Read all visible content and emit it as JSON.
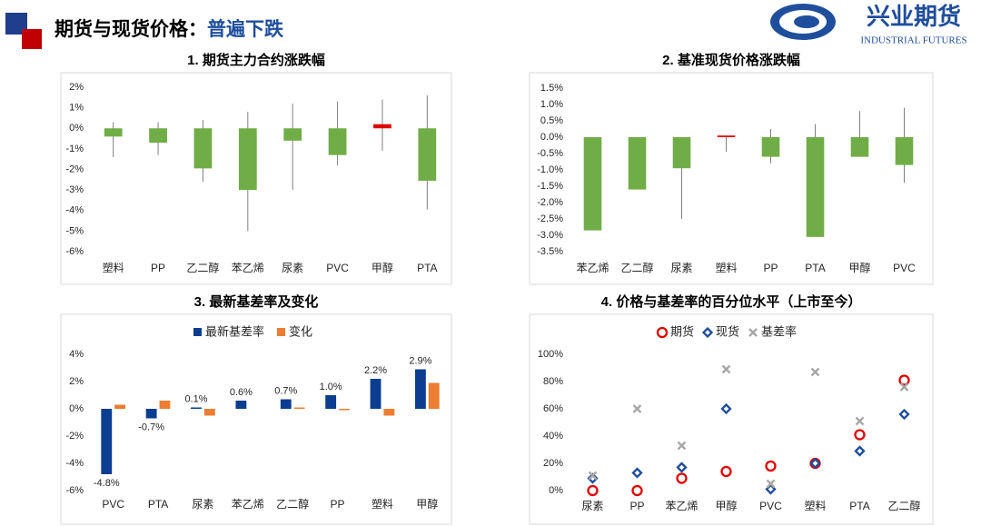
{
  "header": {
    "title": "期货与现货价格：",
    "highlight": "普遍下跌"
  },
  "logo": {
    "name": "兴业期货",
    "subtitle": "INDUSTRIAL FUTURES"
  },
  "chart_data": [
    {
      "type": "range_bar",
      "title": "1. 期货主力合约涨跌幅",
      "categories": [
        "塑料",
        "PP",
        "乙二醇",
        "苯乙烯",
        "尿素",
        "PVC",
        "甲醇",
        "PTA"
      ],
      "values": [
        -0.4,
        -0.7,
        -1.95,
        -3.0,
        -0.6,
        -1.3,
        0.2,
        -2.55
      ],
      "high": [
        0.3,
        0.3,
        0.4,
        0.8,
        1.2,
        1.3,
        1.4,
        1.6
      ],
      "low": [
        -1.4,
        -1.3,
        -2.6,
        -5.0,
        -3.0,
        -1.8,
        -1.1,
        -3.95
      ],
      "up_color": "#e00000",
      "down_color": "#70ad47",
      "grid": false,
      "ylim": [
        -6,
        2
      ],
      "yticks": [
        {
          "value": -6,
          "label": "-6%"
        },
        {
          "value": -5,
          "label": "-5%"
        },
        {
          "value": -4,
          "label": "-4%"
        },
        {
          "value": -3,
          "label": "-3%"
        },
        {
          "value": -2,
          "label": "-2%"
        },
        {
          "value": -1,
          "label": "-1%"
        },
        {
          "value": 0,
          "label": "0%"
        },
        {
          "value": 1,
          "label": "1%"
        },
        {
          "value": 2,
          "label": "2%"
        }
      ]
    },
    {
      "type": "range_bar",
      "title": "2. 基准现货价格涨跌幅",
      "categories": [
        "苯乙烯",
        "乙二醇",
        "尿素",
        "塑料",
        "PP",
        "PTA",
        "甲醇",
        "PVC"
      ],
      "values": [
        -2.85,
        -1.6,
        -0.95,
        0.05,
        -0.6,
        -3.05,
        -0.6,
        -0.85
      ],
      "high": [
        null,
        null,
        null,
        null,
        0.25,
        0.4,
        0.8,
        0.9
      ],
      "low": [
        null,
        null,
        -2.5,
        -0.45,
        -0.8,
        null,
        null,
        -1.4
      ],
      "up_color": "#e00000",
      "down_color": "#70ad47",
      "grid": false,
      "ylim": [
        -3.5,
        1.5
      ],
      "yticks": [
        {
          "value": -3.5,
          "label": "-3.5%"
        },
        {
          "value": -3,
          "label": "-3.0%"
        },
        {
          "value": -2.5,
          "label": "-2.5%"
        },
        {
          "value": -2,
          "label": "-2.0%"
        },
        {
          "value": -1.5,
          "label": "-1.5%"
        },
        {
          "value": -1,
          "label": "-1.0%"
        },
        {
          "value": -0.5,
          "label": "-0.5%"
        },
        {
          "value": 0,
          "label": "0.0%"
        },
        {
          "value": 0.5,
          "label": "0.5%"
        },
        {
          "value": 1,
          "label": "1.0%"
        },
        {
          "value": 1.5,
          "label": "1.5%"
        }
      ]
    },
    {
      "type": "bar",
      "title": "3. 最新基差率及变化",
      "categories": [
        "PVC",
        "PTA",
        "尿素",
        "苯乙烯",
        "乙二醇",
        "PP",
        "塑料",
        "甲醇"
      ],
      "series": [
        {
          "name": "最新基差率",
          "color": "#0b3d91",
          "values": [
            -4.8,
            -0.7,
            0.1,
            0.6,
            0.7,
            1.0,
            2.2,
            2.9
          ],
          "value_labels": [
            "-4.8%",
            "-0.7%",
            "0.1%",
            "0.6%",
            "0.7%",
            "1.0%",
            "2.2%",
            "2.9%"
          ]
        },
        {
          "name": "变化",
          "color": "#ed7d31",
          "values": [
            0.3,
            0.6,
            -0.5,
            0,
            0.1,
            -0.1,
            -0.5,
            1.9
          ]
        }
      ],
      "legend": "top",
      "grid": false,
      "ylim": [
        -6,
        4
      ],
      "yticks": [
        {
          "value": -6,
          "label": "-6%"
        },
        {
          "value": -4,
          "label": "-4%"
        },
        {
          "value": -2,
          "label": "-2%"
        },
        {
          "value": 0,
          "label": "0%"
        },
        {
          "value": 2,
          "label": "2%"
        },
        {
          "value": 4,
          "label": "4%"
        }
      ]
    },
    {
      "type": "scatter",
      "title": "4. 价格与基差率的百分位水平（上市至今）",
      "categories": [
        "尿素",
        "PP",
        "苯乙烯",
        "甲醇",
        "PVC",
        "塑料",
        "PTA",
        "乙二醇"
      ],
      "series": [
        {
          "name": "期货",
          "color": "#e00000",
          "marker": "circle",
          "values": [
            0,
            0,
            9,
            14,
            18,
            20,
            41,
            81
          ]
        },
        {
          "name": "现货",
          "color": "#1f4e9c",
          "marker": "diamond",
          "values": [
            9,
            13,
            17,
            60,
            1,
            20,
            29,
            56
          ]
        },
        {
          "name": "基差率",
          "color": "#a6a6a6",
          "marker": "x",
          "values": [
            11,
            60,
            33,
            89,
            5,
            87,
            51,
            76
          ]
        }
      ],
      "legend": "top",
      "grid": false,
      "ylim": [
        0,
        100
      ],
      "yticks": [
        {
          "value": 0,
          "label": "0%"
        },
        {
          "value": 20,
          "label": "20%"
        },
        {
          "value": 40,
          "label": "40%"
        },
        {
          "value": 60,
          "label": "60%"
        },
        {
          "value": 80,
          "label": "80%"
        },
        {
          "value": 100,
          "label": "100%"
        }
      ]
    }
  ]
}
